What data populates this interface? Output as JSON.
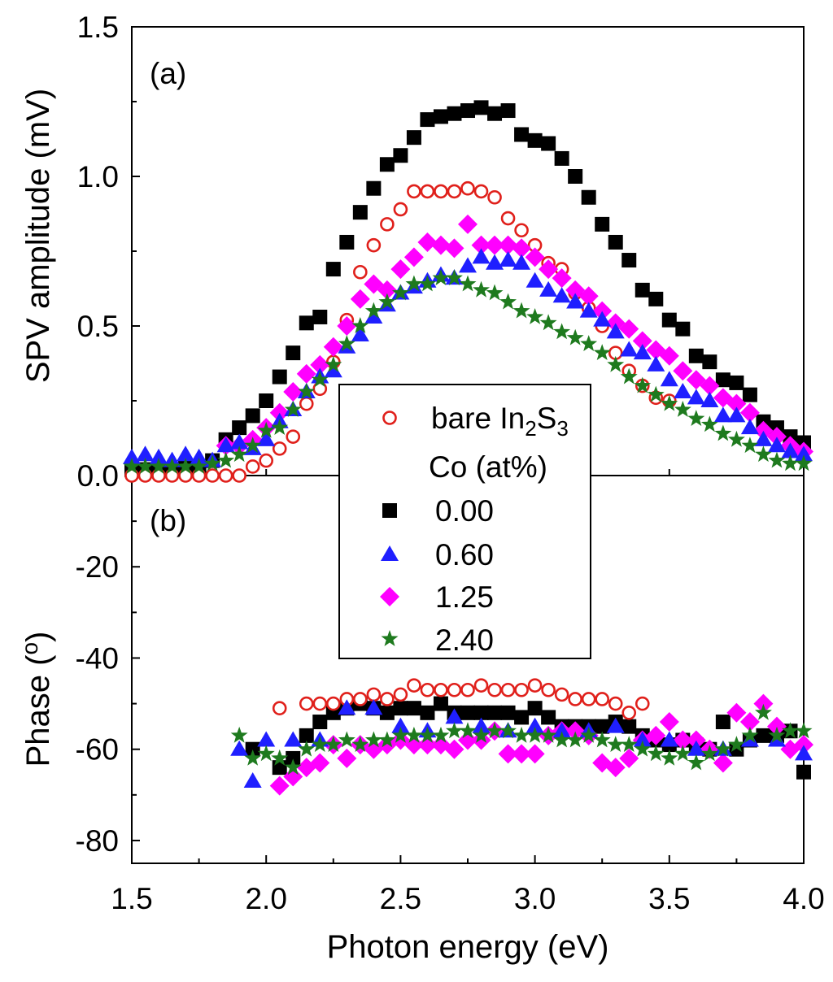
{
  "chart_data": [
    {
      "type": "scatter",
      "panel": "(a)",
      "ylabel": "SPV amplitude (mV)",
      "xlim": [
        1.5,
        4.0
      ],
      "ylim": [
        0.0,
        1.5
      ],
      "yticks": [
        "0.0",
        "0.5",
        "1.0",
        "1.5"
      ],
      "series": [
        {
          "name": "bare In2S3",
          "marker": "open-circle",
          "color": "#e0201b",
          "x": [
            1.5,
            1.55,
            1.6,
            1.65,
            1.7,
            1.75,
            1.8,
            1.85,
            1.9,
            1.95,
            2.0,
            2.05,
            2.1,
            2.15,
            2.2,
            2.25,
            2.3,
            2.35,
            2.4,
            2.45,
            2.5,
            2.55,
            2.6,
            2.65,
            2.7,
            2.75,
            2.8,
            2.85,
            2.9,
            2.95,
            3.0,
            3.05,
            3.1,
            3.15,
            3.2,
            3.25,
            3.3,
            3.35,
            3.4,
            3.45,
            3.5
          ],
          "y": [
            0.0,
            0.0,
            0.0,
            0.0,
            0.0,
            0.0,
            0.0,
            0.0,
            0.0,
            0.03,
            0.05,
            0.09,
            0.13,
            0.24,
            0.29,
            0.38,
            0.52,
            0.68,
            0.77,
            0.84,
            0.89,
            0.95,
            0.95,
            0.95,
            0.95,
            0.96,
            0.95,
            0.93,
            0.86,
            0.82,
            0.77,
            0.71,
            0.69,
            0.61,
            0.56,
            0.5,
            0.41,
            0.35,
            0.3,
            0.26,
            0.25
          ]
        },
        {
          "name": "0.00",
          "marker": "square",
          "color": "#000000",
          "x": [
            1.5,
            1.55,
            1.6,
            1.65,
            1.7,
            1.75,
            1.8,
            1.85,
            1.9,
            1.95,
            2.0,
            2.05,
            2.1,
            2.15,
            2.2,
            2.25,
            2.3,
            2.35,
            2.4,
            2.45,
            2.5,
            2.55,
            2.6,
            2.65,
            2.7,
            2.75,
            2.8,
            2.85,
            2.9,
            2.95,
            3.0,
            3.05,
            3.1,
            3.15,
            3.2,
            3.25,
            3.3,
            3.35,
            3.4,
            3.45,
            3.5,
            3.55,
            3.6,
            3.65,
            3.7,
            3.75,
            3.8,
            3.85,
            3.9,
            3.95,
            4.0
          ],
          "y": [
            0.02,
            0.02,
            0.02,
            0.02,
            0.03,
            0.03,
            0.05,
            0.12,
            0.16,
            0.2,
            0.25,
            0.33,
            0.41,
            0.51,
            0.53,
            0.69,
            0.78,
            0.88,
            0.96,
            1.04,
            1.07,
            1.13,
            1.19,
            1.2,
            1.21,
            1.22,
            1.23,
            1.21,
            1.22,
            1.14,
            1.12,
            1.11,
            1.06,
            1.0,
            0.93,
            0.84,
            0.78,
            0.72,
            0.62,
            0.59,
            0.52,
            0.49,
            0.4,
            0.38,
            0.32,
            0.31,
            0.27,
            0.18,
            0.16,
            0.13,
            0.11
          ]
        },
        {
          "name": "0.60",
          "marker": "triangle",
          "color": "#1f1fff",
          "x": [
            1.5,
            1.55,
            1.6,
            1.65,
            1.7,
            1.75,
            1.8,
            1.85,
            1.9,
            1.95,
            2.0,
            2.05,
            2.1,
            2.15,
            2.2,
            2.25,
            2.3,
            2.35,
            2.4,
            2.45,
            2.5,
            2.55,
            2.6,
            2.65,
            2.7,
            2.75,
            2.8,
            2.85,
            2.9,
            2.95,
            3.0,
            3.05,
            3.1,
            3.15,
            3.2,
            3.25,
            3.3,
            3.35,
            3.4,
            3.45,
            3.5,
            3.55,
            3.6,
            3.65,
            3.7,
            3.75,
            3.8,
            3.85,
            3.9,
            3.95,
            4.0
          ],
          "y": [
            0.06,
            0.07,
            0.06,
            0.05,
            0.07,
            0.06,
            0.05,
            0.1,
            0.11,
            0.09,
            0.12,
            0.18,
            0.22,
            0.28,
            0.33,
            0.35,
            0.43,
            0.47,
            0.53,
            0.57,
            0.61,
            0.63,
            0.65,
            0.67,
            0.66,
            0.7,
            0.73,
            0.71,
            0.72,
            0.71,
            0.65,
            0.62,
            0.6,
            0.58,
            0.55,
            0.52,
            0.48,
            0.42,
            0.41,
            0.37,
            0.32,
            0.28,
            0.26,
            0.25,
            0.2,
            0.2,
            0.16,
            0.12,
            0.1,
            0.08,
            0.07
          ]
        },
        {
          "name": "1.25",
          "marker": "diamond",
          "color": "#ff00ff",
          "x": [
            1.85,
            1.9,
            1.95,
            2.0,
            2.05,
            2.1,
            2.15,
            2.2,
            2.25,
            2.3,
            2.35,
            2.4,
            2.45,
            2.5,
            2.55,
            2.6,
            2.65,
            2.7,
            2.75,
            2.8,
            2.85,
            2.9,
            2.95,
            3.0,
            3.05,
            3.1,
            3.15,
            3.2,
            3.25,
            3.3,
            3.35,
            3.4,
            3.45,
            3.5,
            3.55,
            3.6,
            3.65,
            3.7,
            3.75,
            3.8,
            3.85,
            3.9,
            3.95,
            4.0
          ],
          "y": [
            0.1,
            0.1,
            0.12,
            0.16,
            0.21,
            0.28,
            0.34,
            0.37,
            0.43,
            0.5,
            0.59,
            0.64,
            0.62,
            0.69,
            0.73,
            0.78,
            0.77,
            0.76,
            0.84,
            0.77,
            0.77,
            0.77,
            0.76,
            0.73,
            0.69,
            0.66,
            0.62,
            0.6,
            0.55,
            0.51,
            0.49,
            0.45,
            0.42,
            0.4,
            0.35,
            0.32,
            0.3,
            0.26,
            0.24,
            0.21,
            0.15,
            0.13,
            0.1,
            0.08
          ]
        },
        {
          "name": "2.40",
          "marker": "star",
          "color": "#1e7a1e",
          "x": [
            1.5,
            1.55,
            1.6,
            1.65,
            1.7,
            1.75,
            1.8,
            1.85,
            1.9,
            1.95,
            2.0,
            2.05,
            2.1,
            2.15,
            2.2,
            2.25,
            2.3,
            2.35,
            2.4,
            2.45,
            2.5,
            2.55,
            2.6,
            2.65,
            2.7,
            2.75,
            2.8,
            2.85,
            2.9,
            2.95,
            3.0,
            3.05,
            3.1,
            3.15,
            3.2,
            3.25,
            3.3,
            3.35,
            3.4,
            3.45,
            3.5,
            3.55,
            3.6,
            3.65,
            3.7,
            3.75,
            3.8,
            3.85,
            3.9,
            3.95,
            4.0
          ],
          "y": [
            0.03,
            0.03,
            0.03,
            0.03,
            0.03,
            0.03,
            0.04,
            0.05,
            0.07,
            0.1,
            0.15,
            0.16,
            0.22,
            0.28,
            0.32,
            0.37,
            0.44,
            0.5,
            0.55,
            0.58,
            0.61,
            0.64,
            0.64,
            0.66,
            0.66,
            0.64,
            0.62,
            0.61,
            0.58,
            0.55,
            0.53,
            0.51,
            0.48,
            0.46,
            0.44,
            0.41,
            0.37,
            0.33,
            0.3,
            0.27,
            0.24,
            0.22,
            0.19,
            0.17,
            0.14,
            0.12,
            0.1,
            0.07,
            0.05,
            0.04,
            0.04
          ]
        }
      ]
    },
    {
      "type": "scatter",
      "panel": "(b)",
      "ylabel": "Phase (°)",
      "xlabel": "Photon energy (eV)",
      "xlim": [
        1.5,
        4.0
      ],
      "ylim": [
        -85,
        0
      ],
      "xticks": [
        "1.5",
        "2.0",
        "2.5",
        "3.0",
        "3.5",
        "4.0"
      ],
      "yticks": [
        "-80",
        "-60",
        "-40",
        "-20"
      ],
      "series": [
        {
          "name": "bare In2S3",
          "marker": "open-circle",
          "color": "#e0201b",
          "x": [
            2.05,
            2.15,
            2.2,
            2.25,
            2.3,
            2.35,
            2.4,
            2.45,
            2.5,
            2.55,
            2.6,
            2.65,
            2.7,
            2.75,
            2.8,
            2.85,
            2.9,
            2.95,
            3.0,
            3.05,
            3.1,
            3.15,
            3.2,
            3.25,
            3.3,
            3.35,
            3.4
          ],
          "y": [
            -51,
            -50,
            -50,
            -50,
            -49,
            -49,
            -48,
            -49,
            -48,
            -46,
            -47,
            -47,
            -47,
            -47,
            -46,
            -47,
            -47,
            -47,
            -46,
            -47,
            -48,
            -49,
            -49,
            -49,
            -50,
            -52,
            -50
          ]
        },
        {
          "name": "0.00",
          "marker": "square",
          "color": "#000000",
          "x": [
            1.95,
            2.05,
            2.1,
            2.15,
            2.2,
            2.25,
            2.3,
            2.35,
            2.4,
            2.45,
            2.5,
            2.55,
            2.6,
            2.65,
            2.7,
            2.75,
            2.8,
            2.85,
            2.9,
            2.95,
            3.0,
            3.05,
            3.1,
            3.15,
            3.2,
            3.25,
            3.3,
            3.35,
            3.4,
            3.45,
            3.5,
            3.55,
            3.6,
            3.65,
            3.7,
            3.75,
            3.8,
            3.85,
            3.9,
            3.95,
            4.0
          ],
          "y": [
            -60,
            -64,
            -62,
            -57,
            -54,
            -52,
            -51,
            -50,
            -51,
            -52,
            -51,
            -51,
            -52,
            -50,
            -52,
            -52,
            -52,
            -52,
            -52,
            -53,
            -51,
            -53,
            -55,
            -55,
            -55,
            -55,
            -54,
            -55,
            -57,
            -58,
            -59,
            -58,
            -59,
            -60,
            -54,
            -60,
            -58,
            -57,
            -57,
            -56,
            -65
          ]
        },
        {
          "name": "0.60",
          "marker": "triangle",
          "color": "#1f1fff",
          "x": [
            1.9,
            1.95,
            2.0,
            2.1,
            2.2,
            2.3,
            2.4,
            2.5,
            2.6,
            2.7,
            2.8,
            2.9,
            3.0,
            3.1,
            3.2,
            3.3,
            3.4,
            3.5,
            3.6,
            3.7,
            3.8,
            3.9,
            4.0
          ],
          "y": [
            -60,
            -67,
            -58,
            -58,
            -58,
            -51,
            -51,
            -55,
            -56,
            -53,
            -55,
            -56,
            -55,
            -56,
            -56,
            -55,
            -58,
            -58,
            -60,
            -60,
            -58,
            -58,
            -61
          ]
        },
        {
          "name": "1.25",
          "marker": "diamond",
          "color": "#ff00ff",
          "x": [
            2.05,
            2.1,
            2.15,
            2.2,
            2.25,
            2.3,
            2.35,
            2.4,
            2.45,
            2.5,
            2.55,
            2.6,
            2.65,
            2.7,
            2.75,
            2.8,
            2.85,
            2.9,
            2.95,
            3.0,
            3.05,
            3.1,
            3.15,
            3.2,
            3.25,
            3.3,
            3.35,
            3.4,
            3.45,
            3.5,
            3.55,
            3.6,
            3.65,
            3.7,
            3.75,
            3.8,
            3.85,
            3.9,
            3.95,
            4.0
          ],
          "y": [
            -68,
            -66,
            -64,
            -63,
            -59,
            -62,
            -59,
            -60,
            -59,
            -58,
            -59,
            -59,
            -59,
            -60,
            -58,
            -58,
            -56,
            -61,
            -61,
            -61,
            -57,
            -56,
            -56,
            -57,
            -63,
            -64,
            -62,
            -58,
            -57,
            -54,
            -58,
            -58,
            -60,
            -63,
            -52,
            -54,
            -50,
            -55,
            -60,
            -59
          ]
        },
        {
          "name": "2.40",
          "marker": "star",
          "color": "#1e7a1e",
          "x": [
            1.9,
            1.95,
            2.0,
            2.05,
            2.1,
            2.15,
            2.2,
            2.25,
            2.3,
            2.35,
            2.4,
            2.45,
            2.5,
            2.55,
            2.6,
            2.65,
            2.7,
            2.75,
            2.8,
            2.85,
            2.9,
            2.95,
            3.0,
            3.05,
            3.1,
            3.15,
            3.2,
            3.25,
            3.3,
            3.35,
            3.4,
            3.45,
            3.5,
            3.55,
            3.6,
            3.65,
            3.7,
            3.75,
            3.8,
            3.85,
            3.9,
            3.95,
            4.0
          ],
          "y": [
            -57,
            -62,
            -61,
            -62,
            -64,
            -60,
            -59,
            -59,
            -58,
            -59,
            -58,
            -58,
            -57,
            -57,
            -57,
            -57,
            -56,
            -56,
            -57,
            -56,
            -56,
            -57,
            -57,
            -57,
            -58,
            -58,
            -57,
            -58,
            -59,
            -59,
            -60,
            -61,
            -62,
            -61,
            -63,
            -61,
            -60,
            -59,
            -57,
            -52,
            -57,
            -56,
            -56
          ]
        }
      ]
    }
  ],
  "legend": {
    "placement": "center-left",
    "bare_prefix": "bare In",
    "bare_sub1": "2",
    "bare_mid": "S",
    "bare_sub2": "3",
    "group_title": "Co (at%)",
    "entries": [
      "0.00",
      "0.60",
      "1.25",
      "2.40"
    ]
  },
  "axes": {
    "top_ylabel": "SPV amplitude (mV)",
    "bottom_ylabel_prefix": "Phase (",
    "bottom_ylabel_sup": "o",
    "bottom_ylabel_suffix": ")",
    "xlabel": "Photon energy (eV)",
    "panel_a": "(a)",
    "panel_b": "(b)"
  }
}
